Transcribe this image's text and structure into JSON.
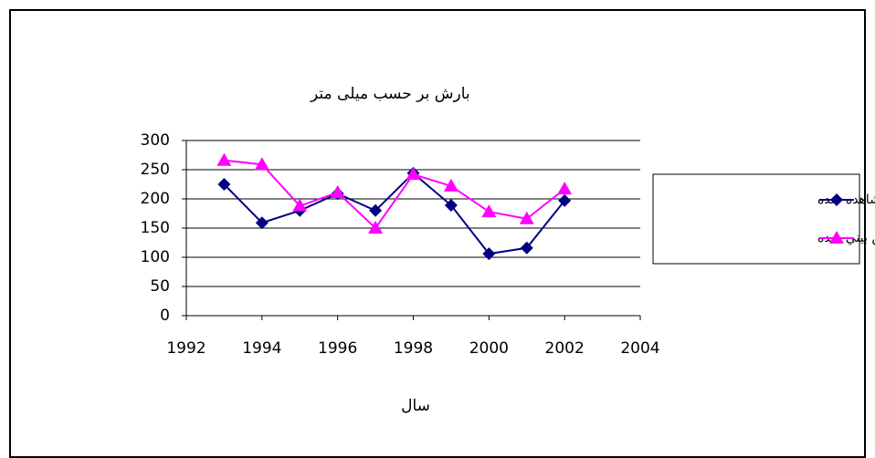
{
  "chart_data": {
    "type": "line",
    "y_label": "بارش بر حسب میلی متر",
    "x_label": "سال",
    "x": [
      1993,
      1994,
      1995,
      1996,
      1997,
      1998,
      1999,
      2000,
      2001,
      2002
    ],
    "series": [
      {
        "name": "بارش مشاهده شده",
        "color": "#000080",
        "marker": "diamond",
        "values": [
          225,
          159,
          180,
          209,
          180,
          244,
          189,
          106,
          116,
          197
        ]
      },
      {
        "name": "بارش پيش بيني شده",
        "color": "#ff00ff",
        "marker": "triangle",
        "values": [
          266,
          259,
          188,
          211,
          150,
          242,
          222,
          178,
          166,
          217
        ]
      }
    ],
    "xlim": [
      1992,
      2004
    ],
    "xticks": [
      1992,
      1994,
      1996,
      1998,
      2000,
      2002,
      2004
    ],
    "ylim": [
      0,
      300
    ],
    "yticks": [
      0,
      50,
      100,
      150,
      200,
      250,
      300
    ],
    "grid": true,
    "legend": "right"
  }
}
